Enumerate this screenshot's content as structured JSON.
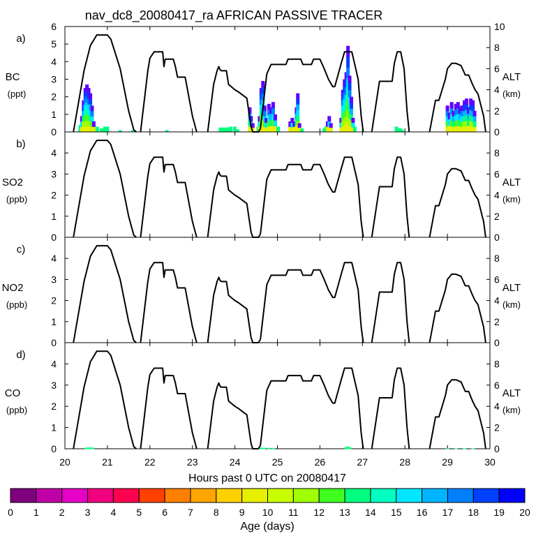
{
  "chart_data": {
    "type": "line",
    "title": "nav_dc8_20080417_ra AFRICAN PASSIVE TRACER",
    "xlabel": "Hours past 0 UTC on 20080417",
    "x_ticks": [
      "20",
      "21",
      "22",
      "23",
      "24",
      "25",
      "26",
      "27",
      "28",
      "29",
      "30"
    ],
    "xlim": [
      20,
      30
    ],
    "right_axis": {
      "label": "ALT",
      "unit": "(km)",
      "ylim": [
        0,
        10
      ]
    },
    "altitude_track": {
      "name": "ALT (km)",
      "flights": [
        {
          "x": [
            20.2,
            20.45,
            20.6,
            20.75,
            21.0,
            21.08,
            21.3,
            21.5,
            21.62,
            21.68
          ],
          "y": [
            0,
            5.8,
            8.2,
            9.2,
            9.2,
            8.8,
            6.0,
            2.0,
            0.2,
            0
          ]
        },
        {
          "x": [
            21.78,
            21.95,
            22.0,
            22.1,
            22.3,
            22.33,
            22.36,
            22.4,
            22.55,
            22.6,
            22.65,
            22.83,
            23.0,
            23.1
          ],
          "y": [
            0,
            5.8,
            7.0,
            7.6,
            7.6,
            6.2,
            6.9,
            6.9,
            6.9,
            6.2,
            5.2,
            5.2,
            1.5,
            0
          ]
        },
        {
          "x": [
            23.36,
            23.5,
            23.58,
            23.62,
            23.65,
            23.68,
            23.8,
            23.85,
            24.0,
            24.08,
            24.28,
            24.38,
            24.42,
            24.55,
            24.6
          ],
          "y": [
            0,
            4.5,
            5.8,
            6.2,
            5.9,
            5.8,
            5.8,
            4.5,
            4.0,
            3.8,
            3.2,
            0.5,
            0,
            0,
            0.3
          ]
        },
        {
          "x": [
            24.6,
            24.75,
            24.85,
            25.2,
            25.25,
            25.55,
            25.6,
            25.8,
            25.85,
            26.0,
            26.1,
            26.2,
            26.3,
            26.35,
            26.5,
            26.58,
            26.75,
            26.9,
            26.97,
            27.02
          ],
          "y": [
            0.3,
            5.5,
            6.4,
            6.4,
            6.9,
            6.9,
            6.4,
            6.4,
            6.9,
            6.9,
            6.0,
            5.0,
            4.3,
            4.3,
            6.5,
            7.6,
            7.6,
            5.0,
            1.5,
            0
          ]
        },
        {
          "x": [
            27.22,
            27.4,
            27.7,
            27.75,
            27.82,
            27.9,
            27.98,
            28.05,
            28.1
          ],
          "y": [
            0,
            4.8,
            4.8,
            6.5,
            7.6,
            7.6,
            6.0,
            2.0,
            0
          ]
        },
        {
          "x": [
            28.58,
            28.72,
            28.8,
            28.95,
            29.0,
            29.1,
            29.2,
            29.32,
            29.42,
            29.5,
            29.58,
            29.65,
            29.72,
            29.85,
            29.9
          ],
          "y": [
            0,
            3.0,
            3.0,
            5.0,
            6.0,
            6.5,
            6.5,
            6.3,
            5.4,
            5.4,
            4.6,
            4.0,
            3.6,
            1.5,
            0
          ]
        }
      ]
    },
    "panels": [
      {
        "label": "a)",
        "species": "BC",
        "unit": "(ppt)",
        "ylim": [
          0,
          6
        ],
        "y_ticks": [
          "0",
          "1",
          "2",
          "3",
          "4",
          "5",
          "6"
        ],
        "alt_ticks": [
          "0",
          "2",
          "4",
          "6",
          "8",
          "10"
        ],
        "tracer_bars": [
          {
            "x": 20.36,
            "value": 0.4
          },
          {
            "x": 20.4,
            "value": 0.9
          },
          {
            "x": 20.44,
            "value": 1.8
          },
          {
            "x": 20.48,
            "value": 2.5
          },
          {
            "x": 20.52,
            "value": 2.7
          },
          {
            "x": 20.56,
            "value": 2.5
          },
          {
            "x": 20.6,
            "value": 2.2
          },
          {
            "x": 20.64,
            "value": 1.5
          },
          {
            "x": 20.68,
            "value": 0.6
          },
          {
            "x": 20.76,
            "value": 0.3
          },
          {
            "x": 20.86,
            "value": 0.2
          },
          {
            "x": 20.94,
            "value": 0.3
          },
          {
            "x": 21.0,
            "value": 0.3
          },
          {
            "x": 21.3,
            "value": 0.1
          },
          {
            "x": 21.6,
            "value": 0.1
          },
          {
            "x": 22.4,
            "value": 0.1
          },
          {
            "x": 23.66,
            "value": 0.25
          },
          {
            "x": 23.72,
            "value": 0.25
          },
          {
            "x": 23.78,
            "value": 0.25
          },
          {
            "x": 23.84,
            "value": 0.25
          },
          {
            "x": 23.9,
            "value": 0.3
          },
          {
            "x": 24.0,
            "value": 0.3
          },
          {
            "x": 24.06,
            "value": 0.15
          },
          {
            "x": 24.35,
            "value": 1.4
          },
          {
            "x": 24.38,
            "value": 0.9
          },
          {
            "x": 24.42,
            "value": 0.5
          },
          {
            "x": 24.55,
            "value": 0.3
          },
          {
            "x": 24.58,
            "value": 0.9
          },
          {
            "x": 24.62,
            "value": 2.5
          },
          {
            "x": 24.66,
            "value": 2.9
          },
          {
            "x": 24.7,
            "value": 1.5
          },
          {
            "x": 24.74,
            "value": 0.8
          },
          {
            "x": 24.8,
            "value": 1.6
          },
          {
            "x": 24.85,
            "value": 1.4
          },
          {
            "x": 24.9,
            "value": 1.7
          },
          {
            "x": 24.95,
            "value": 1.0
          },
          {
            "x": 25.02,
            "value": 0.3
          },
          {
            "x": 25.3,
            "value": 0.6
          },
          {
            "x": 25.35,
            "value": 0.8
          },
          {
            "x": 25.4,
            "value": 0.6
          },
          {
            "x": 25.45,
            "value": 1.4
          },
          {
            "x": 25.48,
            "value": 2.2
          },
          {
            "x": 25.52,
            "value": 0.5
          },
          {
            "x": 25.58,
            "value": 0.2
          },
          {
            "x": 26.1,
            "value": 0.2
          },
          {
            "x": 26.14,
            "value": 0.3
          },
          {
            "x": 26.18,
            "value": 0.6
          },
          {
            "x": 26.22,
            "value": 0.9
          },
          {
            "x": 26.26,
            "value": 0.5
          },
          {
            "x": 26.5,
            "value": 0.8
          },
          {
            "x": 26.54,
            "value": 2.4
          },
          {
            "x": 26.58,
            "value": 3.0
          },
          {
            "x": 26.62,
            "value": 3.4
          },
          {
            "x": 26.66,
            "value": 4.9
          },
          {
            "x": 26.7,
            "value": 3.2
          },
          {
            "x": 26.74,
            "value": 2.0
          },
          {
            "x": 26.78,
            "value": 0.8
          },
          {
            "x": 26.82,
            "value": 0.3
          },
          {
            "x": 27.8,
            "value": 0.3
          },
          {
            "x": 27.85,
            "value": 0.2
          },
          {
            "x": 27.9,
            "value": 0.2
          },
          {
            "x": 27.96,
            "value": 0.1
          },
          {
            "x": 29.0,
            "value": 1.5
          },
          {
            "x": 29.05,
            "value": 1.1
          },
          {
            "x": 29.1,
            "value": 1.7
          },
          {
            "x": 29.15,
            "value": 1.2
          },
          {
            "x": 29.2,
            "value": 1.6
          },
          {
            "x": 29.25,
            "value": 1.7
          },
          {
            "x": 29.3,
            "value": 1.4
          },
          {
            "x": 29.34,
            "value": 1.5
          },
          {
            "x": 29.4,
            "value": 1.8
          },
          {
            "x": 29.45,
            "value": 1.9
          },
          {
            "x": 29.5,
            "value": 1.4
          },
          {
            "x": 29.55,
            "value": 1.9
          },
          {
            "x": 29.6,
            "value": 1.8
          },
          {
            "x": 29.64,
            "value": 1.2
          }
        ]
      },
      {
        "label": "b)",
        "species": "SO2",
        "unit": "(ppb)",
        "ylim": [
          0,
          5
        ],
        "y_ticks": [
          "0",
          "1",
          "2",
          "3",
          "4"
        ],
        "alt_ticks": [
          "0",
          "2",
          "4",
          "6",
          "8"
        ],
        "tracer_bars": []
      },
      {
        "label": "c)",
        "species": "NO2",
        "unit": "(ppb)",
        "ylim": [
          0,
          5
        ],
        "y_ticks": [
          "0",
          "1",
          "2",
          "3",
          "4"
        ],
        "alt_ticks": [
          "0",
          "2",
          "4",
          "6",
          "8"
        ],
        "tracer_bars": []
      },
      {
        "label": "d)",
        "species": "CO",
        "unit": "(ppb)",
        "ylim": [
          0,
          5
        ],
        "y_ticks": [
          "0",
          "1",
          "2",
          "3",
          "4"
        ],
        "alt_ticks": [
          "0",
          "2",
          "4",
          "6",
          "8"
        ],
        "tracer_bars": [
          {
            "x": 20.5,
            "value": 0.05
          },
          {
            "x": 20.55,
            "value": 0.06
          },
          {
            "x": 20.6,
            "value": 0.06
          },
          {
            "x": 20.65,
            "value": 0.05
          },
          {
            "x": 24.6,
            "value": 0.05
          },
          {
            "x": 24.68,
            "value": 0.05
          },
          {
            "x": 24.8,
            "value": 0.04
          },
          {
            "x": 24.9,
            "value": 0.04
          },
          {
            "x": 26.62,
            "value": 0.08
          },
          {
            "x": 26.66,
            "value": 0.1
          },
          {
            "x": 26.7,
            "value": 0.06
          },
          {
            "x": 29.0,
            "value": 0.02
          },
          {
            "x": 29.2,
            "value": 0.02
          },
          {
            "x": 29.4,
            "value": 0.02
          },
          {
            "x": 29.6,
            "value": 0.02
          }
        ]
      }
    ],
    "colorbar": {
      "label": "Age (days)",
      "tick_labels": [
        "0",
        "1",
        "2",
        "3",
        "4",
        "5",
        "6",
        "7",
        "8",
        "9",
        "10",
        "11",
        "12",
        "13",
        "14",
        "15",
        "16",
        "17",
        "18",
        "19",
        "20"
      ],
      "colors": [
        "#7f007f",
        "#bf00a8",
        "#e600c8",
        "#f0007e",
        "#ff0050",
        "#ff4000",
        "#ff8000",
        "#ffa500",
        "#ffd000",
        "#e6f000",
        "#c8ff00",
        "#a0ff00",
        "#40ff20",
        "#00ff80",
        "#00ffc0",
        "#00e6ff",
        "#00b4ff",
        "#0080ff",
        "#0040ff",
        "#0000ff",
        "#6000ff"
      ]
    }
  }
}
